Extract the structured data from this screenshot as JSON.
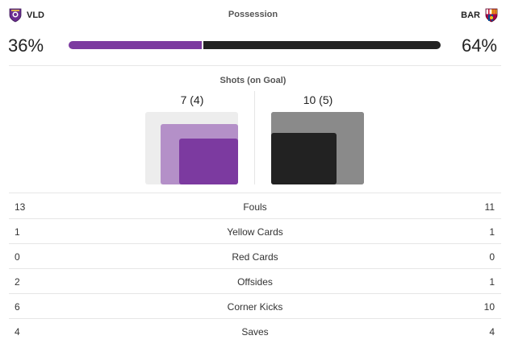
{
  "colors": {
    "home": "#7c3aa0",
    "home_light": "#b490c8",
    "away": "#222222",
    "away_light": "#8a8a8a"
  },
  "home_team": {
    "abbr": "VLD",
    "crest_icon": "valladolid-crest-icon"
  },
  "away_team": {
    "abbr": "BAR",
    "crest_icon": "barcelona-crest-icon"
  },
  "possession": {
    "title": "Possession",
    "home_pct": 36,
    "away_pct": 64,
    "home_label": "36%",
    "away_label": "64%"
  },
  "shots": {
    "title": "Shots (on Goal)",
    "home": {
      "label": "7 (4)",
      "total": 7,
      "on_goal": 4
    },
    "away": {
      "label": "10 (5)",
      "total": 10,
      "on_goal": 5
    }
  },
  "stats": [
    {
      "label": "Fouls",
      "home": "13",
      "away": "11"
    },
    {
      "label": "Yellow Cards",
      "home": "1",
      "away": "1"
    },
    {
      "label": "Red Cards",
      "home": "0",
      "away": "0"
    },
    {
      "label": "Offsides",
      "home": "2",
      "away": "1"
    },
    {
      "label": "Corner Kicks",
      "home": "6",
      "away": "10"
    },
    {
      "label": "Saves",
      "home": "4",
      "away": "4"
    }
  ]
}
